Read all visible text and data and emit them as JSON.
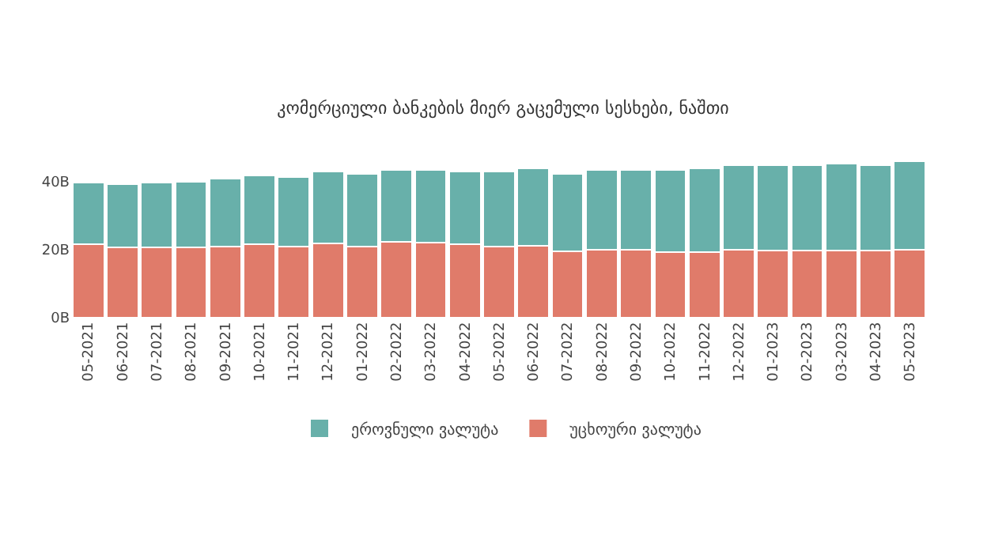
{
  "chart_data": {
    "type": "bar",
    "title": "კომერციული ბანკების მიერ გაცემული სესხები, ნაშთი",
    "stacked": true,
    "legend": "bottom",
    "grid": false,
    "categories": [
      "05-2021",
      "06-2021",
      "07-2021",
      "08-2021",
      "09-2021",
      "10-2021",
      "11-2021",
      "12-2021",
      "01-2022",
      "02-2022",
      "03-2022",
      "04-2022",
      "05-2022",
      "06-2022",
      "07-2022",
      "08-2022",
      "09-2022",
      "10-2022",
      "11-2022",
      "12-2022",
      "01-2023",
      "02-2023",
      "03-2023",
      "04-2023",
      "05-2023"
    ],
    "ylim": [
      0,
      47
    ],
    "yticks": [
      {
        "value": 0,
        "label": "0B"
      },
      {
        "value": 20,
        "label": "20B"
      },
      {
        "value": 40,
        "label": "40B"
      }
    ],
    "series": [
      {
        "name": "უცხოური ვალუტა",
        "color": "#e07b6a",
        "values": [
          21.6,
          20.6,
          20.6,
          20.6,
          20.9,
          21.6,
          21.0,
          21.9,
          21.0,
          22.3,
          22.0,
          21.7,
          20.9,
          21.1,
          19.6,
          20.1,
          19.9,
          19.4,
          19.4,
          20.1,
          19.7,
          19.7,
          19.7,
          19.7,
          20.1
        ]
      },
      {
        "name": "ეროვნული ვალუტა",
        "color": "#68b0aa",
        "values": [
          18.1,
          18.7,
          19.1,
          19.5,
          20.1,
          20.3,
          20.4,
          21.2,
          21.3,
          21.3,
          21.6,
          21.4,
          22.2,
          22.9,
          22.7,
          23.5,
          23.7,
          24.2,
          24.6,
          24.8,
          25.2,
          25.2,
          25.6,
          25.2,
          26.0
        ]
      }
    ]
  }
}
